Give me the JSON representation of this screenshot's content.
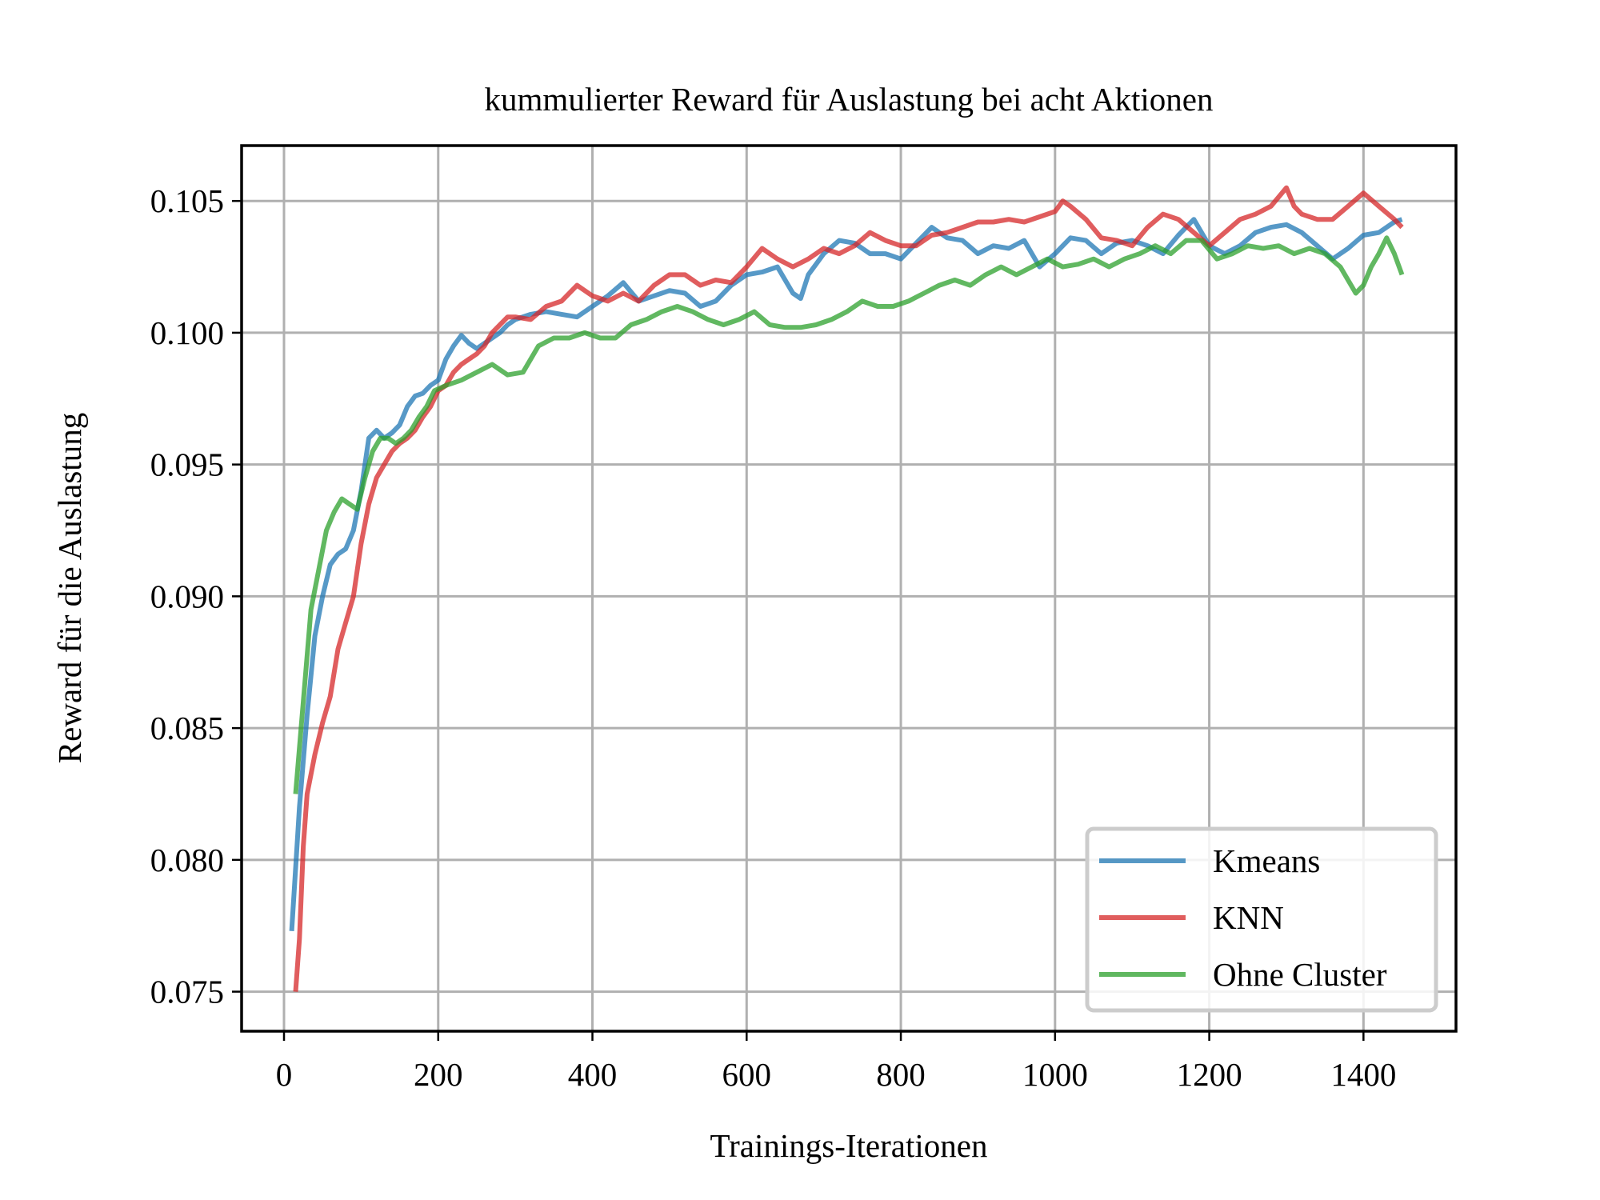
{
  "chart_data": {
    "type": "line",
    "title": "kummulierter Reward für Auslastung bei acht Aktionen",
    "xlabel": "Trainings-Iterationen",
    "ylabel": "Reward für die Auslastung",
    "xlim": [
      -55,
      1520
    ],
    "ylim": [
      0.0735,
      0.1071
    ],
    "x_ticks": [
      0,
      200,
      400,
      600,
      800,
      1000,
      1200,
      1400
    ],
    "x_tick_labels": [
      "0",
      "200",
      "400",
      "600",
      "800",
      "1000",
      "1200",
      "1400"
    ],
    "y_ticks": [
      0.075,
      0.08,
      0.085,
      0.09,
      0.095,
      0.1,
      0.105
    ],
    "y_tick_labels": [
      "0.075",
      "0.080",
      "0.085",
      "0.090",
      "0.095",
      "0.100",
      "0.105"
    ],
    "grid": true,
    "legend_position": "lower right",
    "series": [
      {
        "name": "Kmeans",
        "color": "#1f77b4",
        "points": [
          [
            10,
            0.0773
          ],
          [
            20,
            0.082
          ],
          [
            30,
            0.0855
          ],
          [
            40,
            0.0885
          ],
          [
            50,
            0.09
          ],
          [
            60,
            0.0912
          ],
          [
            70,
            0.0916
          ],
          [
            80,
            0.0918
          ],
          [
            90,
            0.0925
          ],
          [
            100,
            0.094
          ],
          [
            110,
            0.096
          ],
          [
            120,
            0.0963
          ],
          [
            130,
            0.096
          ],
          [
            140,
            0.0962
          ],
          [
            150,
            0.0965
          ],
          [
            160,
            0.0972
          ],
          [
            170,
            0.0976
          ],
          [
            180,
            0.0977
          ],
          [
            190,
            0.098
          ],
          [
            200,
            0.0982
          ],
          [
            210,
            0.099
          ],
          [
            220,
            0.0995
          ],
          [
            230,
            0.0999
          ],
          [
            240,
            0.0996
          ],
          [
            250,
            0.0994
          ],
          [
            260,
            0.0996
          ],
          [
            270,
            0.0998
          ],
          [
            280,
            0.1
          ],
          [
            290,
            0.1003
          ],
          [
            300,
            0.1005
          ],
          [
            320,
            0.1007
          ],
          [
            340,
            0.1008
          ],
          [
            360,
            0.1007
          ],
          [
            380,
            0.1006
          ],
          [
            400,
            0.101
          ],
          [
            420,
            0.1014
          ],
          [
            440,
            0.1019
          ],
          [
            460,
            0.1012
          ],
          [
            480,
            0.1014
          ],
          [
            500,
            0.1016
          ],
          [
            520,
            0.1015
          ],
          [
            540,
            0.101
          ],
          [
            560,
            0.1012
          ],
          [
            580,
            0.1018
          ],
          [
            600,
            0.1022
          ],
          [
            620,
            0.1023
          ],
          [
            640,
            0.1025
          ],
          [
            660,
            0.1015
          ],
          [
            670,
            0.1013
          ],
          [
            680,
            0.1022
          ],
          [
            700,
            0.103
          ],
          [
            720,
            0.1035
          ],
          [
            740,
            0.1034
          ],
          [
            760,
            0.103
          ],
          [
            780,
            0.103
          ],
          [
            800,
            0.1028
          ],
          [
            820,
            0.1034
          ],
          [
            840,
            0.104
          ],
          [
            860,
            0.1036
          ],
          [
            880,
            0.1035
          ],
          [
            900,
            0.103
          ],
          [
            920,
            0.1033
          ],
          [
            940,
            0.1032
          ],
          [
            960,
            0.1035
          ],
          [
            980,
            0.1025
          ],
          [
            1000,
            0.103
          ],
          [
            1020,
            0.1036
          ],
          [
            1040,
            0.1035
          ],
          [
            1060,
            0.103
          ],
          [
            1080,
            0.1034
          ],
          [
            1100,
            0.1035
          ],
          [
            1120,
            0.1033
          ],
          [
            1140,
            0.103
          ],
          [
            1160,
            0.1037
          ],
          [
            1180,
            0.1043
          ],
          [
            1200,
            0.1033
          ],
          [
            1220,
            0.103
          ],
          [
            1240,
            0.1033
          ],
          [
            1260,
            0.1038
          ],
          [
            1280,
            0.104
          ],
          [
            1300,
            0.1041
          ],
          [
            1320,
            0.1038
          ],
          [
            1340,
            0.1033
          ],
          [
            1360,
            0.1028
          ],
          [
            1380,
            0.1032
          ],
          [
            1400,
            0.1037
          ],
          [
            1420,
            0.1038
          ],
          [
            1440,
            0.1042
          ],
          [
            1450,
            0.1043
          ]
        ]
      },
      {
        "name": "KNN",
        "color": "#d62728",
        "points": [
          [
            15,
            0.075
          ],
          [
            20,
            0.077
          ],
          [
            25,
            0.0805
          ],
          [
            30,
            0.0825
          ],
          [
            40,
            0.084
          ],
          [
            50,
            0.0852
          ],
          [
            60,
            0.0862
          ],
          [
            70,
            0.088
          ],
          [
            80,
            0.089
          ],
          [
            90,
            0.09
          ],
          [
            100,
            0.092
          ],
          [
            110,
            0.0935
          ],
          [
            120,
            0.0945
          ],
          [
            130,
            0.095
          ],
          [
            140,
            0.0955
          ],
          [
            150,
            0.0958
          ],
          [
            160,
            0.096
          ],
          [
            170,
            0.0963
          ],
          [
            180,
            0.0968
          ],
          [
            190,
            0.0972
          ],
          [
            200,
            0.0978
          ],
          [
            210,
            0.098
          ],
          [
            220,
            0.0985
          ],
          [
            230,
            0.0988
          ],
          [
            240,
            0.099
          ],
          [
            250,
            0.0992
          ],
          [
            260,
            0.0995
          ],
          [
            270,
            0.1
          ],
          [
            280,
            0.1003
          ],
          [
            290,
            0.1006
          ],
          [
            300,
            0.1006
          ],
          [
            320,
            0.1005
          ],
          [
            340,
            0.101
          ],
          [
            360,
            0.1012
          ],
          [
            380,
            0.1018
          ],
          [
            400,
            0.1014
          ],
          [
            420,
            0.1012
          ],
          [
            440,
            0.1015
          ],
          [
            460,
            0.1012
          ],
          [
            480,
            0.1018
          ],
          [
            500,
            0.1022
          ],
          [
            520,
            0.1022
          ],
          [
            540,
            0.1018
          ],
          [
            560,
            0.102
          ],
          [
            580,
            0.1019
          ],
          [
            600,
            0.1025
          ],
          [
            620,
            0.1032
          ],
          [
            640,
            0.1028
          ],
          [
            660,
            0.1025
          ],
          [
            680,
            0.1028
          ],
          [
            700,
            0.1032
          ],
          [
            720,
            0.103
          ],
          [
            740,
            0.1033
          ],
          [
            760,
            0.1038
          ],
          [
            780,
            0.1035
          ],
          [
            800,
            0.1033
          ],
          [
            820,
            0.1033
          ],
          [
            840,
            0.1037
          ],
          [
            860,
            0.1038
          ],
          [
            880,
            0.104
          ],
          [
            900,
            0.1042
          ],
          [
            920,
            0.1042
          ],
          [
            940,
            0.1043
          ],
          [
            960,
            0.1042
          ],
          [
            980,
            0.1044
          ],
          [
            1000,
            0.1046
          ],
          [
            1010,
            0.105
          ],
          [
            1020,
            0.1048
          ],
          [
            1040,
            0.1043
          ],
          [
            1060,
            0.1036
          ],
          [
            1080,
            0.1035
          ],
          [
            1100,
            0.1033
          ],
          [
            1120,
            0.104
          ],
          [
            1140,
            0.1045
          ],
          [
            1160,
            0.1043
          ],
          [
            1180,
            0.1038
          ],
          [
            1200,
            0.1033
          ],
          [
            1220,
            0.1038
          ],
          [
            1240,
            0.1043
          ],
          [
            1260,
            0.1045
          ],
          [
            1280,
            0.1048
          ],
          [
            1300,
            0.1055
          ],
          [
            1310,
            0.1048
          ],
          [
            1320,
            0.1045
          ],
          [
            1340,
            0.1043
          ],
          [
            1360,
            0.1043
          ],
          [
            1380,
            0.1048
          ],
          [
            1400,
            0.1053
          ],
          [
            1420,
            0.1048
          ],
          [
            1440,
            0.1043
          ],
          [
            1450,
            0.104
          ]
        ]
      },
      {
        "name": "Ohne Cluster",
        "color": "#2ca02c",
        "points": [
          [
            15,
            0.0825
          ],
          [
            25,
            0.086
          ],
          [
            35,
            0.0895
          ],
          [
            45,
            0.091
          ],
          [
            55,
            0.0925
          ],
          [
            65,
            0.0932
          ],
          [
            75,
            0.0937
          ],
          [
            85,
            0.0935
          ],
          [
            95,
            0.0933
          ],
          [
            105,
            0.0945
          ],
          [
            115,
            0.0955
          ],
          [
            125,
            0.096
          ],
          [
            135,
            0.096
          ],
          [
            145,
            0.0958
          ],
          [
            155,
            0.096
          ],
          [
            165,
            0.0963
          ],
          [
            175,
            0.0968
          ],
          [
            185,
            0.0972
          ],
          [
            195,
            0.0978
          ],
          [
            210,
            0.098
          ],
          [
            230,
            0.0982
          ],
          [
            250,
            0.0985
          ],
          [
            270,
            0.0988
          ],
          [
            290,
            0.0984
          ],
          [
            310,
            0.0985
          ],
          [
            330,
            0.0995
          ],
          [
            350,
            0.0998
          ],
          [
            370,
            0.0998
          ],
          [
            390,
            0.1
          ],
          [
            410,
            0.0998
          ],
          [
            430,
            0.0998
          ],
          [
            450,
            0.1003
          ],
          [
            470,
            0.1005
          ],
          [
            490,
            0.1008
          ],
          [
            510,
            0.101
          ],
          [
            530,
            0.1008
          ],
          [
            550,
            0.1005
          ],
          [
            570,
            0.1003
          ],
          [
            590,
            0.1005
          ],
          [
            610,
            0.1008
          ],
          [
            630,
            0.1003
          ],
          [
            650,
            0.1002
          ],
          [
            670,
            0.1002
          ],
          [
            690,
            0.1003
          ],
          [
            710,
            0.1005
          ],
          [
            730,
            0.1008
          ],
          [
            750,
            0.1012
          ],
          [
            770,
            0.101
          ],
          [
            790,
            0.101
          ],
          [
            810,
            0.1012
          ],
          [
            830,
            0.1015
          ],
          [
            850,
            0.1018
          ],
          [
            870,
            0.102
          ],
          [
            890,
            0.1018
          ],
          [
            910,
            0.1022
          ],
          [
            930,
            0.1025
          ],
          [
            950,
            0.1022
          ],
          [
            970,
            0.1025
          ],
          [
            990,
            0.1028
          ],
          [
            1010,
            0.1025
          ],
          [
            1030,
            0.1026
          ],
          [
            1050,
            0.1028
          ],
          [
            1070,
            0.1025
          ],
          [
            1090,
            0.1028
          ],
          [
            1110,
            0.103
          ],
          [
            1130,
            0.1033
          ],
          [
            1150,
            0.103
          ],
          [
            1170,
            0.1035
          ],
          [
            1190,
            0.1035
          ],
          [
            1210,
            0.1028
          ],
          [
            1230,
            0.103
          ],
          [
            1250,
            0.1033
          ],
          [
            1270,
            0.1032
          ],
          [
            1290,
            0.1033
          ],
          [
            1310,
            0.103
          ],
          [
            1330,
            0.1032
          ],
          [
            1350,
            0.103
          ],
          [
            1370,
            0.1025
          ],
          [
            1390,
            0.1015
          ],
          [
            1400,
            0.1018
          ],
          [
            1410,
            0.1025
          ],
          [
            1420,
            0.103
          ],
          [
            1430,
            0.1036
          ],
          [
            1440,
            0.103
          ],
          [
            1450,
            0.1022
          ]
        ]
      }
    ]
  }
}
